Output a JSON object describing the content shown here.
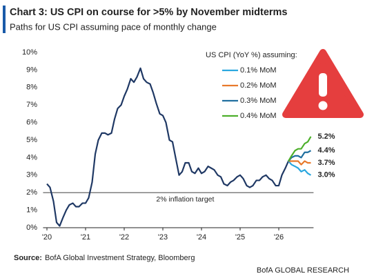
{
  "chart_data": {
    "type": "line",
    "title": "Chart 3: US CPI on course for >5% by November midterms",
    "subtitle": "Paths for US CPI assuming pace of monthly change",
    "legend_title": "US CPI (YoY %) assuming:",
    "legend": "top-right",
    "grid": false,
    "xlim": [
      2019.9,
      2026.9
    ],
    "ylim": [
      0,
      10
    ],
    "xticks": [
      {
        "value": 2020,
        "label": "'20"
      },
      {
        "value": 2021,
        "label": "'21"
      },
      {
        "value": 2022,
        "label": "'22"
      },
      {
        "value": 2023,
        "label": "'23"
      },
      {
        "value": 2024,
        "label": "'24"
      },
      {
        "value": 2025,
        "label": "'25"
      },
      {
        "value": 2026,
        "label": "'26"
      }
    ],
    "yticks": [
      {
        "value": 0,
        "label": "0%"
      },
      {
        "value": 1,
        "label": "1%"
      },
      {
        "value": 2,
        "label": "2%"
      },
      {
        "value": 3,
        "label": "3%"
      },
      {
        "value": 4,
        "label": "4%"
      },
      {
        "value": 5,
        "label": "5%"
      },
      {
        "value": 6,
        "label": "6%"
      },
      {
        "value": 7,
        "label": "7%"
      },
      {
        "value": 8,
        "label": "8%"
      },
      {
        "value": 9,
        "label": "9%"
      },
      {
        "value": 10,
        "label": "10%"
      }
    ],
    "reference_line": {
      "value": 2,
      "text": "2% inflation target",
      "color": "#7f7f7f"
    },
    "series": [
      {
        "color": "#1f3864",
        "x": [
          2020.0,
          2020.08,
          2020.17,
          2020.25,
          2020.33,
          2020.42,
          2020.5,
          2020.58,
          2020.67,
          2020.75,
          2020.83,
          2020.92,
          2021.0,
          2021.08,
          2021.17,
          2021.25,
          2021.33,
          2021.42,
          2021.5,
          2021.58,
          2021.67,
          2021.75,
          2021.83,
          2021.92,
          2022.0,
          2022.08,
          2022.17,
          2022.25,
          2022.33,
          2022.42,
          2022.5,
          2022.58,
          2022.67,
          2022.75,
          2022.83,
          2022.92,
          2023.0,
          2023.08,
          2023.17,
          2023.25,
          2023.33,
          2023.42,
          2023.5,
          2023.58,
          2023.67,
          2023.75,
          2023.83,
          2023.92,
          2024.0,
          2024.08,
          2024.17,
          2024.25,
          2024.33,
          2024.42,
          2024.5,
          2024.58,
          2024.67,
          2024.75,
          2024.83,
          2024.92,
          2025.0,
          2025.08,
          2025.17,
          2025.25,
          2025.33,
          2025.42,
          2025.5,
          2025.58,
          2025.67,
          2025.75,
          2025.83,
          2025.92,
          2026.0,
          2026.08,
          2026.17,
          2026.25
        ],
        "values": [
          2.5,
          2.3,
          1.5,
          0.3,
          0.1,
          0.6,
          1.0,
          1.3,
          1.4,
          1.2,
          1.2,
          1.4,
          1.4,
          1.7,
          2.6,
          4.2,
          5.0,
          5.4,
          5.4,
          5.3,
          5.4,
          6.2,
          6.8,
          7.0,
          7.5,
          7.9,
          8.5,
          8.3,
          8.6,
          9.1,
          8.5,
          8.3,
          8.2,
          7.7,
          7.1,
          6.5,
          6.4,
          6.0,
          5.0,
          4.9,
          4.0,
          3.0,
          3.2,
          3.7,
          3.7,
          3.2,
          3.1,
          3.4,
          3.1,
          3.2,
          3.5,
          3.4,
          3.3,
          3.0,
          2.9,
          2.5,
          2.4,
          2.6,
          2.7,
          2.9,
          3.0,
          2.8,
          2.4,
          2.3,
          2.4,
          2.7,
          2.7,
          2.9,
          3.0,
          2.8,
          2.7,
          2.4,
          2.4,
          3.0,
          3.4,
          3.8
        ]
      },
      {
        "name": "0.1% MoM",
        "color": "#2aa7df",
        "x": [
          2026.25,
          2026.33,
          2026.42,
          2026.5,
          2026.58,
          2026.67,
          2026.75,
          2026.83
        ],
        "values": [
          3.8,
          3.6,
          3.5,
          3.4,
          3.2,
          3.3,
          3.1,
          3.0
        ],
        "value_labels": [
          null,
          null,
          null,
          null,
          null,
          null,
          null,
          "3.0%"
        ]
      },
      {
        "name": "0.2% MoM",
        "color": "#e8792b",
        "x": [
          2026.25,
          2026.33,
          2026.42,
          2026.5,
          2026.58,
          2026.67,
          2026.75,
          2026.83
        ],
        "values": [
          3.8,
          3.8,
          3.8,
          3.8,
          3.6,
          3.8,
          3.7,
          3.7
        ],
        "value_labels": [
          null,
          null,
          null,
          null,
          null,
          null,
          null,
          "3.7%"
        ]
      },
      {
        "name": "0.3% MoM",
        "color": "#1f6f9f",
        "x": [
          2026.25,
          2026.33,
          2026.42,
          2026.5,
          2026.58,
          2026.67,
          2026.75,
          2026.83
        ],
        "values": [
          3.8,
          4.0,
          4.1,
          4.1,
          4.0,
          4.3,
          4.3,
          4.4
        ],
        "value_labels": [
          null,
          null,
          null,
          null,
          null,
          null,
          null,
          "4.4%"
        ]
      },
      {
        "name": "0.4% MoM",
        "color": "#4caf2a",
        "x": [
          2026.25,
          2026.33,
          2026.42,
          2026.5,
          2026.58,
          2026.67,
          2026.75,
          2026.83
        ],
        "values": [
          3.8,
          4.1,
          4.4,
          4.5,
          4.5,
          4.8,
          4.9,
          5.2
        ],
        "value_labels": [
          null,
          null,
          null,
          null,
          null,
          null,
          null,
          "5.2%"
        ]
      }
    ],
    "source_label": "Source:",
    "source": "BofA Global Investment Strategy, Bloomberg",
    "footer": "BofA GLOBAL RESEARCH"
  }
}
